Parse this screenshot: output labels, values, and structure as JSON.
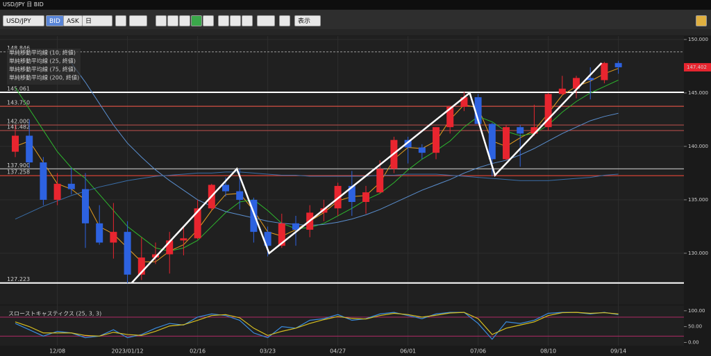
{
  "window": {
    "title": "USD/JPY 日 BID"
  },
  "toolbar": {
    "symbol": "USD/JPY",
    "bid": "BID",
    "ask": "ASK",
    "period": "日",
    "view": "表示"
  },
  "chart_data": [
    {
      "type": "candlestick",
      "categories": [
        null,
        null,
        null,
        "12/08",
        null,
        null,
        null,
        null,
        "2023/01/12",
        null,
        null,
        null,
        null,
        "02/16",
        null,
        null,
        null,
        null,
        "03/23",
        null,
        null,
        null,
        null,
        "04/27",
        null,
        null,
        null,
        null,
        "06/01",
        null,
        null,
        null,
        null,
        "07/06",
        null,
        null,
        null,
        null,
        "08/10",
        null,
        null,
        null,
        null,
        "09/14"
      ],
      "ohlc": [
        [
          139.5,
          142,
          139,
          141
        ],
        [
          141,
          142.5,
          138,
          138.5
        ],
        [
          138.5,
          139,
          134.5,
          135
        ],
        [
          135,
          137.5,
          134.5,
          136.5
        ],
        [
          136.5,
          138,
          135.5,
          136
        ],
        [
          136,
          137.5,
          130.5,
          132.8
        ],
        [
          132.8,
          134.5,
          130.8,
          131
        ],
        [
          131,
          134.7,
          129.5,
          132
        ],
        [
          132,
          133,
          127.2,
          128
        ],
        [
          128,
          131.5,
          127.5,
          129.6
        ],
        [
          129.6,
          131,
          129,
          129.9
        ],
        [
          129.9,
          132,
          128.1,
          131.2
        ],
        [
          131.2,
          132.5,
          129.8,
          131.4
        ],
        [
          131.4,
          135,
          131.3,
          134.2
        ],
        [
          134.2,
          136.5,
          134,
          136.4
        ],
        [
          136.4,
          137.1,
          135.3,
          135.8
        ],
        [
          135.8,
          137.9,
          134.1,
          135
        ],
        [
          135,
          135.2,
          131,
          132
        ],
        [
          132,
          132.5,
          129.7,
          130.7
        ],
        [
          130.7,
          133.7,
          130.5,
          132.8
        ],
        [
          132.8,
          133.5,
          130.7,
          132.2
        ],
        [
          132.2,
          134.5,
          131.5,
          133.8
        ],
        [
          133.8,
          135,
          133,
          134.2
        ],
        [
          134.2,
          136.6,
          133.5,
          136.3
        ],
        [
          136.3,
          137.7,
          133.5,
          134.8
        ],
        [
          134.8,
          136.3,
          133.7,
          135.7
        ],
        [
          135.7,
          138.7,
          135.6,
          137.9
        ],
        [
          137.9,
          140.9,
          137.5,
          140.6
        ],
        [
          140.6,
          140.9,
          138.4,
          139.9
        ],
        [
          139.9,
          140.2,
          138.8,
          139.4
        ],
        [
          139.4,
          141.8,
          138.8,
          141.8
        ],
        [
          141.8,
          143.8,
          141.2,
          143.7
        ],
        [
          143.7,
          145.1,
          143.3,
          144.6
        ],
        [
          144.6,
          144.9,
          142.1,
          142.1
        ],
        [
          142.1,
          142.2,
          137.2,
          138.8
        ],
        [
          138.8,
          142,
          138.7,
          141.8
        ],
        [
          141.8,
          142,
          138.1,
          141.2
        ],
        [
          141.2,
          143.9,
          141,
          141.8
        ],
        [
          141.8,
          145,
          141.5,
          144.9
        ],
        [
          144.9,
          146.6,
          144.8,
          145.4
        ],
        [
          145.4,
          146.6,
          144.5,
          146.4
        ],
        [
          146.4,
          147.4,
          144.4,
          146.2
        ],
        [
          146.2,
          147.9,
          145.9,
          147.8
        ],
        [
          147.8,
          148,
          146.8,
          147.402
        ]
      ],
      "up_color": "#e8252f",
      "down_color": "#2d62e0",
      "ylim": [
        125.45,
        150.45
      ],
      "yticks": [
        {
          "value": 150,
          "label": "150.000"
        },
        {
          "value": 145,
          "label": "145.000"
        },
        {
          "value": 140,
          "label": "140.000"
        },
        {
          "value": 135,
          "label": "135.000"
        },
        {
          "value": 130,
          "label": "130.000"
        }
      ],
      "lines": [
        {
          "name": "単純移動平均線 (10, 終値)",
          "color": "#e8a020",
          "values": [
            140,
            140.5,
            138.5,
            136.5,
            136,
            135,
            132.5,
            131.8,
            130.5,
            129.2,
            129.2,
            130.2,
            130.8,
            132.2,
            134,
            135.5,
            135.6,
            134,
            132,
            131.6,
            132.2,
            133,
            133.8,
            134.9,
            135.3,
            135.4,
            136.6,
            138.8,
            139.9,
            139.8,
            140.5,
            142.5,
            143.9,
            143.6,
            140.5,
            140,
            140.8,
            141.5,
            143.1,
            144.8,
            145.6,
            146.1,
            146.8,
            147.3
          ]
        },
        {
          "name": "単純移動平均線 (25, 終値)",
          "color": "#2eb82e",
          "values": [
            145.5,
            143.5,
            141.5,
            139.5,
            138,
            137,
            135.5,
            134,
            132.5,
            131.5,
            130.5,
            130.2,
            130.5,
            131.2,
            132.5,
            133.8,
            134.8,
            135,
            134,
            132.8,
            132.3,
            132.4,
            132.8,
            133.5,
            134.2,
            135,
            135.6,
            136.6,
            137.8,
            138.8,
            139.6,
            140.5,
            141.8,
            142.8,
            142.3,
            141.4,
            141,
            141.2,
            142,
            143.2,
            144.2,
            145,
            145.6,
            146.2
          ]
        },
        {
          "name": "単純移動平均線 (75, 終値)",
          "color": "#5a8fd0",
          "values": [
            null,
            null,
            null,
            null,
            147.8,
            146,
            144,
            142,
            140.3,
            139,
            137.8,
            136.8,
            135.9,
            135,
            134.4,
            133.9,
            133.6,
            133.3,
            133,
            132.8,
            132.7,
            132.6,
            132.7,
            132.9,
            133.2,
            133.6,
            134.1,
            134.7,
            135.3,
            135.9,
            136.4,
            136.9,
            137.5,
            138,
            138.4,
            138.7,
            139.2,
            139.8,
            140.5,
            141.2,
            141.8,
            142.4,
            142.8,
            143.1
          ]
        },
        {
          "name": "単純移動平均線 (200, 終値)",
          "color": "#3a6ea8",
          "values": [
            133.2,
            133.8,
            134.4,
            134.9,
            135.4,
            135.8,
            136.2,
            136.5,
            136.8,
            137,
            137.2,
            137.3,
            137.4,
            137.5,
            137.5,
            137.6,
            137.6,
            137.5,
            137.4,
            137.3,
            137.3,
            137.2,
            137.2,
            137.2,
            137.2,
            137.2,
            137.3,
            137.3,
            137.4,
            137.4,
            137.4,
            137.3,
            137.2,
            137.1,
            137,
            136.9,
            136.8,
            136.8,
            136.8,
            136.9,
            137,
            137.1,
            137.3,
            137.4
          ]
        }
      ],
      "levels": [
        {
          "value": 148.846,
          "label": "148.846",
          "color": "#9a9a9a",
          "style": "dashed"
        },
        {
          "value": 145.061,
          "label": "145.061",
          "color": "#ffffff"
        },
        {
          "value": 143.75,
          "label": "143.750",
          "color": "#ff5a4a"
        },
        {
          "value": 142,
          "label": "142.000",
          "color": "#c0504d"
        },
        {
          "value": 141.482,
          "label": "141.482",
          "color": "#c0504d"
        },
        {
          "value": 137.9,
          "label": "137.900",
          "color": "#d8d8d8"
        },
        {
          "value": 137.258,
          "label": "137.258",
          "color": "#ff4a3a"
        },
        {
          "value": 127.223,
          "label": "127.223",
          "color": "#ffffff"
        }
      ],
      "trendline": {
        "color": "#ffffff",
        "x": [
          8.3,
          15.8,
          18.1,
          32.4,
          34.2,
          41.8
        ],
        "y": [
          127.223,
          137.9,
          130,
          145,
          137.3,
          147.8
        ]
      },
      "last_price": {
        "value": 147.402,
        "label": "147.402",
        "color": "#e8252f"
      }
    },
    {
      "type": "line",
      "title": "スローストキャスティクス (25, 3, 3)",
      "ylim": [
        -10,
        115
      ],
      "yticks": [
        {
          "value": 100,
          "label": "100.00"
        },
        {
          "value": 50,
          "label": "50.00"
        },
        {
          "value": 0,
          "label": "0.00"
        }
      ],
      "levels": [
        {
          "value": 80,
          "color": "#b02a66"
        },
        {
          "value": 20,
          "color": "#b02a66"
        }
      ],
      "series": [
        {
          "color": "#3a8ce0",
          "values": [
            60,
            40,
            20,
            35,
            30,
            15,
            20,
            40,
            15,
            25,
            45,
            60,
            55,
            80,
            90,
            85,
            70,
            30,
            15,
            50,
            45,
            70,
            75,
            88,
            70,
            75,
            90,
            95,
            85,
            75,
            90,
            95,
            95,
            60,
            10,
            65,
            60,
            70,
            92,
            95,
            95,
            90,
            95,
            88
          ]
        },
        {
          "color": "#d8c020",
          "values": [
            65,
            50,
            30,
            30,
            30,
            22,
            20,
            32,
            25,
            22,
            35,
            52,
            56,
            70,
            85,
            88,
            78,
            45,
            22,
            35,
            45,
            60,
            72,
            82,
            76,
            74,
            85,
            92,
            88,
            80,
            86,
            93,
            95,
            75,
            25,
            45,
            55,
            65,
            85,
            94,
            95,
            92,
            94,
            90
          ]
        }
      ]
    }
  ]
}
